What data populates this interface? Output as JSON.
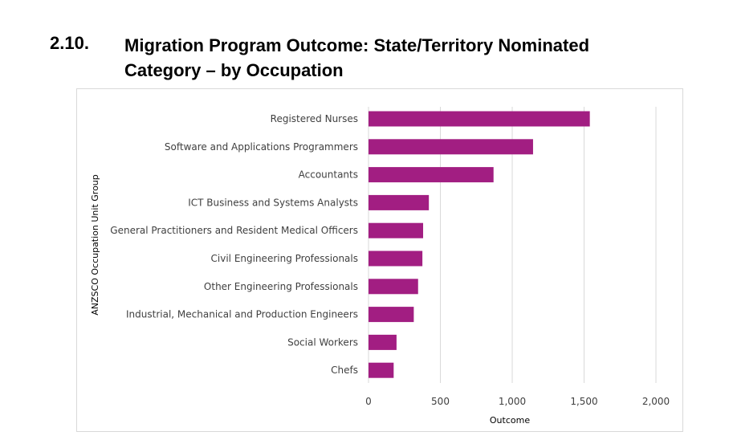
{
  "heading": {
    "number": "2.10.",
    "title_line1": "Migration Program Outcome: State/Territory Nominated",
    "title_line2": "Category – by Occupation"
  },
  "chart_data": {
    "type": "bar",
    "orientation": "horizontal",
    "categories": [
      "Registered Nurses",
      "Software and Applications Programmers",
      "Accountants",
      "ICT Business and Systems Analysts",
      "General Practitioners and Resident Medical Officers",
      "Civil Engineering Professionals",
      "Other Engineering Professionals",
      "Industrial, Mechanical and Production Engineers",
      "Social Workers",
      "Chefs"
    ],
    "values": [
      1540,
      1145,
      870,
      420,
      380,
      375,
      345,
      315,
      195,
      175
    ],
    "xlabel": "Outcome",
    "ylabel": "ANZSCO Occupation Unit Group",
    "xlim": [
      0,
      2000
    ],
    "xticks": [
      0,
      500,
      1000,
      1500,
      2000
    ],
    "xtick_labels": [
      "0",
      "500",
      "1,000",
      "1,500",
      "2,000"
    ],
    "grid": "vertical",
    "bar_color": "#a21e82"
  }
}
